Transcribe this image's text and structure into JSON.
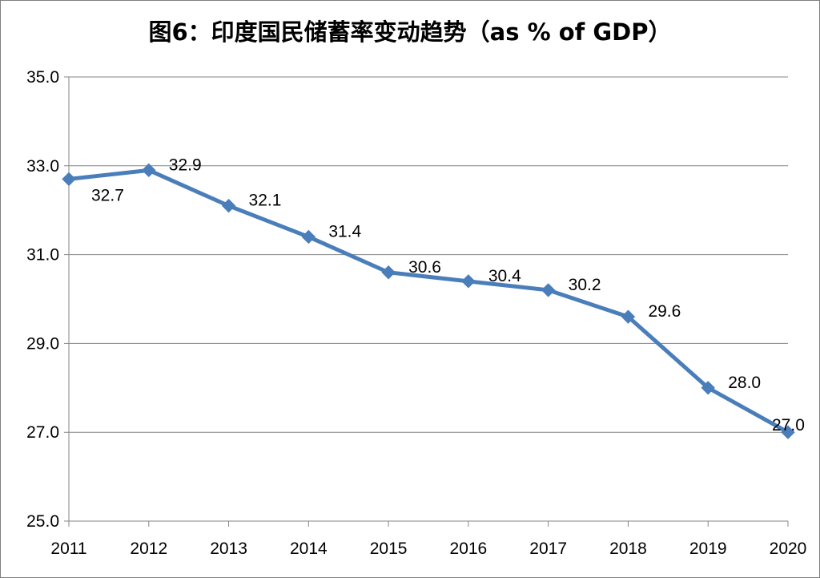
{
  "chart_data": {
    "type": "line",
    "title": "图6：印度国民储蓄率变动趋势（as % of GDP）",
    "xlabel": "",
    "ylabel": "",
    "categories": [
      "2011",
      "2012",
      "2013",
      "2014",
      "2015",
      "2016",
      "2017",
      "2018",
      "2019",
      "2020"
    ],
    "series": [
      {
        "values": [
          32.7,
          32.9,
          32.1,
          31.4,
          30.6,
          30.4,
          30.2,
          29.6,
          28.0,
          27.0
        ]
      }
    ],
    "ylim": [
      25.0,
      35.0
    ],
    "yticks": [
      "25.0",
      "27.0",
      "29.0",
      "31.0",
      "33.0",
      "35.0"
    ],
    "data_labels": [
      "32.7",
      "32.9",
      "32.1",
      "31.4",
      "30.6",
      "30.4",
      "30.2",
      "29.6",
      "28.0",
      "27.0"
    ],
    "grid": true,
    "legend": "none",
    "line_color": "#4a7ebb",
    "marker": "diamond"
  }
}
